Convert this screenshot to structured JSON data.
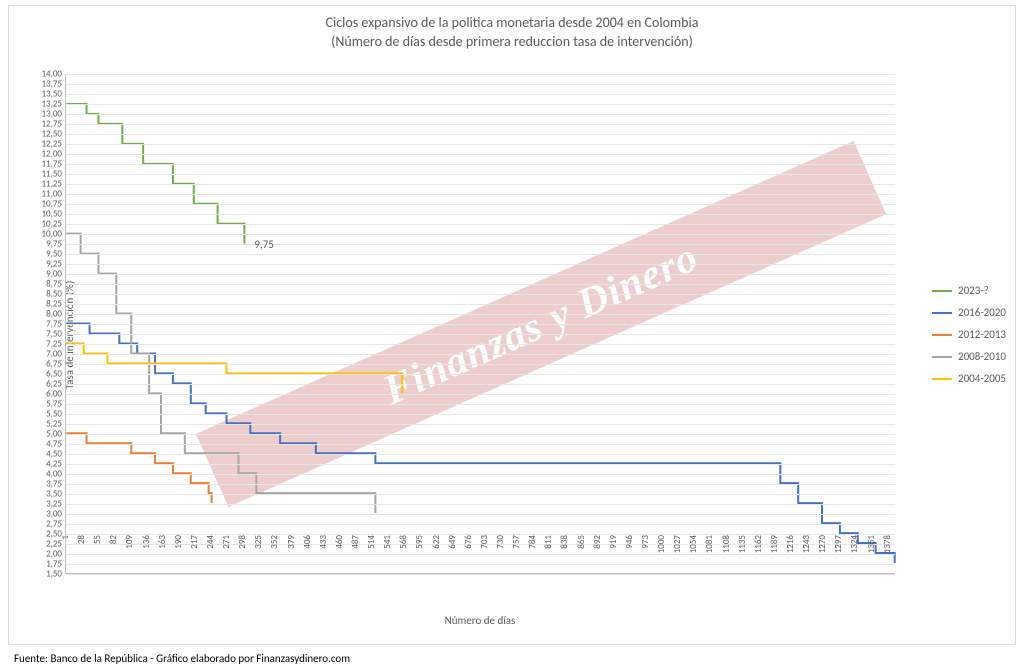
{
  "title_line1": "Ciclos expansivo de la politica monetaria desde 2004 en Colombia",
  "title_line2": "(Número de días desde primera reduccion tasa de intervención)",
  "yaxis_label": "Tasa de intervención (%)",
  "xaxis_label": "Número de días",
  "source": "Fuente: Banco de la República - Gráfico elaborado por Finanzasydinero.com",
  "watermark_text": "Finanzas y Dinero",
  "end_label": "9,75",
  "chart": {
    "type": "step-line",
    "background_color": "#ffffff",
    "grid_color": "#e6e6e6",
    "axis_color": "#bfbfbf",
    "text_color": "#595959",
    "title_fontsize": 14,
    "label_fontsize": 11,
    "tick_fontsize": 9,
    "line_width": 2,
    "ylim": [
      1.5,
      14.0
    ],
    "ytick_step": 0.25,
    "xlim": [
      1,
      1392
    ],
    "xtick_step": 27,
    "watermark_color_rgba": "rgba(192,80,77,0.28)",
    "watermark_text_color": "#ffffff",
    "legend_fontsize": 11,
    "series": [
      {
        "name": "2023-?",
        "color": "#70ad47",
        "points": [
          [
            1,
            13.25
          ],
          [
            35,
            13.0
          ],
          [
            55,
            12.75
          ],
          [
            95,
            12.25
          ],
          [
            130,
            11.75
          ],
          [
            180,
            11.25
          ],
          [
            215,
            10.75
          ],
          [
            255,
            10.25
          ],
          [
            300,
            9.75
          ]
        ]
      },
      {
        "name": "2016-2020",
        "color": "#4472c4",
        "points": [
          [
            1,
            7.75
          ],
          [
            40,
            7.5
          ],
          [
            90,
            7.25
          ],
          [
            120,
            7.0
          ],
          [
            150,
            6.5
          ],
          [
            180,
            6.25
          ],
          [
            210,
            5.75
          ],
          [
            235,
            5.5
          ],
          [
            270,
            5.25
          ],
          [
            310,
            5.0
          ],
          [
            360,
            4.75
          ],
          [
            420,
            4.5
          ],
          [
            520,
            4.25
          ],
          [
            1170,
            4.25
          ],
          [
            1200,
            3.75
          ],
          [
            1230,
            3.25
          ],
          [
            1270,
            2.75
          ],
          [
            1300,
            2.5
          ],
          [
            1330,
            2.25
          ],
          [
            1360,
            2.0
          ],
          [
            1392,
            1.75
          ]
        ]
      },
      {
        "name": "2012-2013",
        "color": "#ed7d31",
        "points": [
          [
            1,
            5.0
          ],
          [
            35,
            4.75
          ],
          [
            110,
            4.5
          ],
          [
            150,
            4.25
          ],
          [
            180,
            4.0
          ],
          [
            210,
            3.75
          ],
          [
            240,
            3.5
          ],
          [
            245,
            3.25
          ]
        ]
      },
      {
        "name": "2008-2010",
        "color": "#a5a5a5",
        "points": [
          [
            1,
            10.0
          ],
          [
            25,
            9.5
          ],
          [
            55,
            9.0
          ],
          [
            85,
            8.0
          ],
          [
            110,
            7.0
          ],
          [
            140,
            6.0
          ],
          [
            160,
            5.0
          ],
          [
            200,
            4.5
          ],
          [
            290,
            4.0
          ],
          [
            320,
            3.5
          ],
          [
            520,
            3.0
          ]
        ]
      },
      {
        "name": "2004-2005",
        "color": "#ffc000",
        "points": [
          [
            1,
            7.25
          ],
          [
            30,
            7.0
          ],
          [
            70,
            6.75
          ],
          [
            270,
            6.5
          ],
          [
            560,
            6.5
          ],
          [
            565,
            6.0
          ]
        ]
      }
    ]
  }
}
